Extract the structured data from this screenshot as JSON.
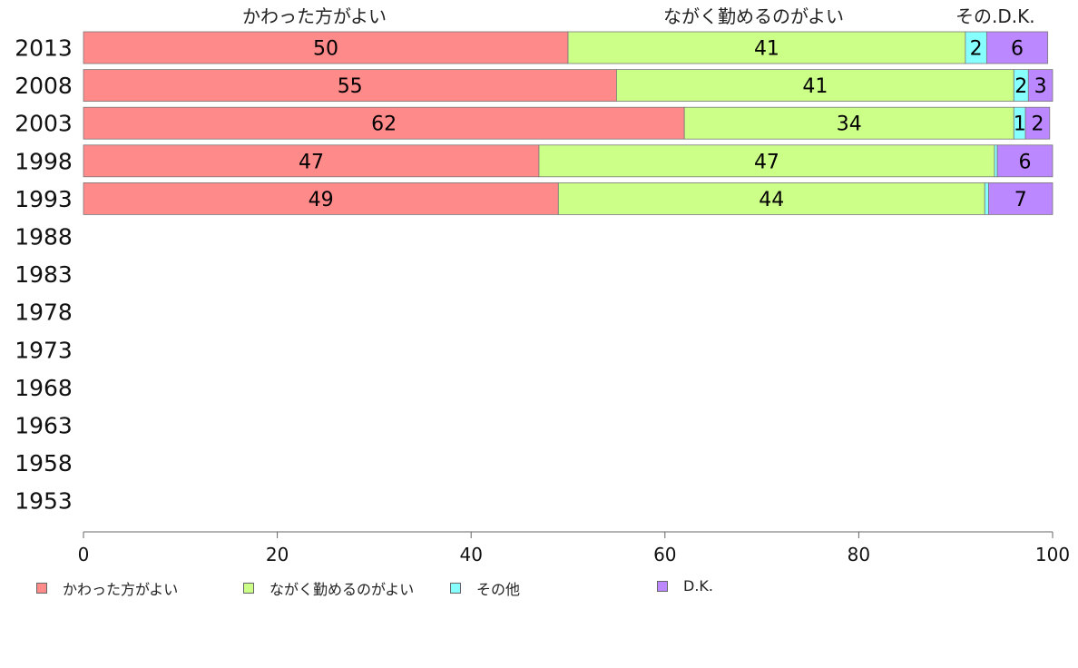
{
  "chart_data": {
    "type": "bar",
    "orientation": "horizontal",
    "stacked": true,
    "title": "",
    "xlabel": "",
    "ylabel": "",
    "xlim": [
      0,
      100
    ],
    "x_ticks": [
      "0",
      "20",
      "40",
      "60",
      "80",
      "100"
    ],
    "categories": [
      "2013",
      "2008",
      "2003",
      "1998",
      "1993",
      "1988",
      "1983",
      "1978",
      "1973",
      "1968",
      "1963",
      "1958",
      "1953"
    ],
    "header_labels": [
      "かわった方がよい",
      "ながく勤めるのがよい",
      "その",
      ".D.K."
    ],
    "series": [
      {
        "name": "かわった方がよい",
        "color": "#ff8a8a",
        "values": [
          50,
          55,
          62,
          47,
          49,
          null,
          null,
          null,
          null,
          null,
          null,
          null,
          null
        ],
        "labels": [
          "50",
          "55",
          "62",
          "47",
          "49",
          "",
          "",
          "",
          "",
          "",
          "",
          "",
          ""
        ]
      },
      {
        "name": "ながく勤めるのがよい",
        "color": "#ccff88",
        "values": [
          41,
          41,
          34,
          47,
          44,
          null,
          null,
          null,
          null,
          null,
          null,
          null,
          null
        ],
        "labels": [
          "41",
          "41",
          "34",
          "47",
          "44",
          "",
          "",
          "",
          "",
          "",
          "",
          "",
          ""
        ]
      },
      {
        "name": "その他",
        "color": "#88ffff",
        "values": [
          2.2,
          1.5,
          1.2,
          0.3,
          0.4,
          null,
          null,
          null,
          null,
          null,
          null,
          null,
          null
        ],
        "labels": [
          "2",
          "2",
          "1",
          "",
          "",
          "",
          "",
          "",
          "",
          "",
          "",
          "",
          ""
        ]
      },
      {
        "name": "D.K.",
        "color": "#bb88ff",
        "values": [
          6.3,
          2.5,
          2.5,
          5.7,
          6.6,
          null,
          null,
          null,
          null,
          null,
          null,
          null,
          null
        ],
        "labels": [
          "6",
          "3",
          "2",
          "6",
          "7",
          "",
          "",
          "",
          "",
          "",
          "",
          "",
          ""
        ]
      }
    ],
    "grid": false,
    "legend_position": "bottom"
  }
}
